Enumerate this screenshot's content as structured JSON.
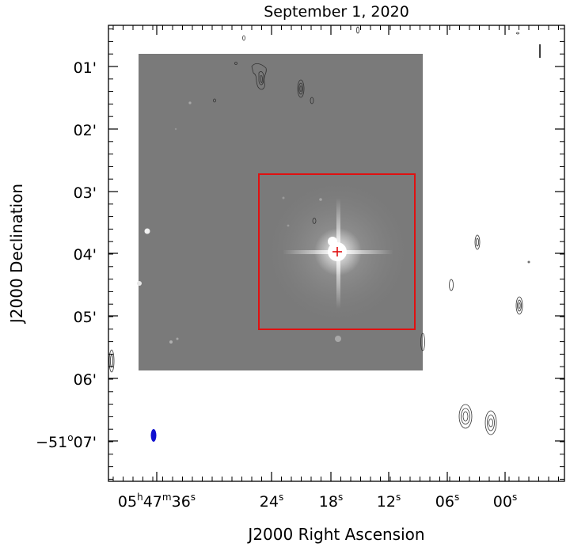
{
  "title": "September 1, 2020",
  "xlabel": "J2000 Right Ascension",
  "ylabel": "J2000 Declination",
  "dec_ticks": [
    {
      "label": "01'"
    },
    {
      "label": "02'"
    },
    {
      "label": "03'"
    },
    {
      "label": "04'"
    },
    {
      "label": "05'"
    },
    {
      "label": "06'"
    },
    {
      "label": "−51°07'",
      "main": "−51",
      "deg": "o",
      "rest": "07'"
    }
  ],
  "ra_ticks": [
    {
      "label": "05h47m36s",
      "h": "05",
      "hs": "h",
      "m": "47",
      "ms": "m",
      "s": "36",
      "ss": "s"
    },
    {
      "label": "24s",
      "s": "24",
      "ss": "s"
    },
    {
      "label": "18s",
      "s": "18",
      "ss": "s"
    },
    {
      "label": "12s",
      "s": "12",
      "ss": "s"
    },
    {
      "label": "06s",
      "s": "06",
      "ss": "s"
    },
    {
      "label": "00s",
      "s": "00",
      "ss": "s"
    }
  ],
  "colors": {
    "image_gray": "#7a7a7a",
    "box": "#e01010",
    "marker": "#e01010",
    "beam": "#1010d0",
    "contour": "#333333"
  }
}
